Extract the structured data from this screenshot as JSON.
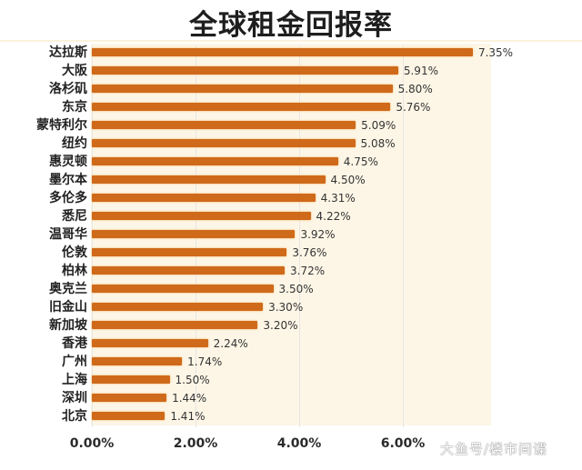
{
  "chart_data": {
    "type": "bar",
    "orientation": "horizontal",
    "title": "全球租金回报率",
    "xlabel": "",
    "ylabel": "",
    "xlim": [
      0,
      7.5
    ],
    "x_ticks": [
      "0.00%",
      "2.00%",
      "4.00%",
      "6.00%"
    ],
    "grid": true,
    "legend": null,
    "categories": [
      "达拉斯",
      "大阪",
      "洛杉矶",
      "东京",
      "蒙特利尔",
      "纽约",
      "惠灵顿",
      "墨尔本",
      "多伦多",
      "悉尼",
      "温哥华",
      "伦敦",
      "柏林",
      "奥克兰",
      "旧金山",
      "新加坡",
      "香港",
      "广州",
      "上海",
      "深圳",
      "北京"
    ],
    "values": [
      7.35,
      5.91,
      5.8,
      5.76,
      5.09,
      5.08,
      4.75,
      4.5,
      4.31,
      4.22,
      3.92,
      3.76,
      3.72,
      3.5,
      3.3,
      3.2,
      2.24,
      1.74,
      1.5,
      1.44,
      1.41
    ],
    "value_labels": [
      "7.35%",
      "5.91%",
      "5.80%",
      "5.76%",
      "5.09%",
      "5.08%",
      "4.75%",
      "4.50%",
      "4.31%",
      "4.22%",
      "3.92%",
      "3.76%",
      "3.72%",
      "3.50%",
      "3.30%",
      "3.20%",
      "2.24%",
      "1.74%",
      "1.50%",
      "1.44%",
      "1.41%"
    ],
    "bar_color": "#cf6a1a"
  },
  "title": "全球租金回报率",
  "watermark": "大鱼号/楼市间谍"
}
